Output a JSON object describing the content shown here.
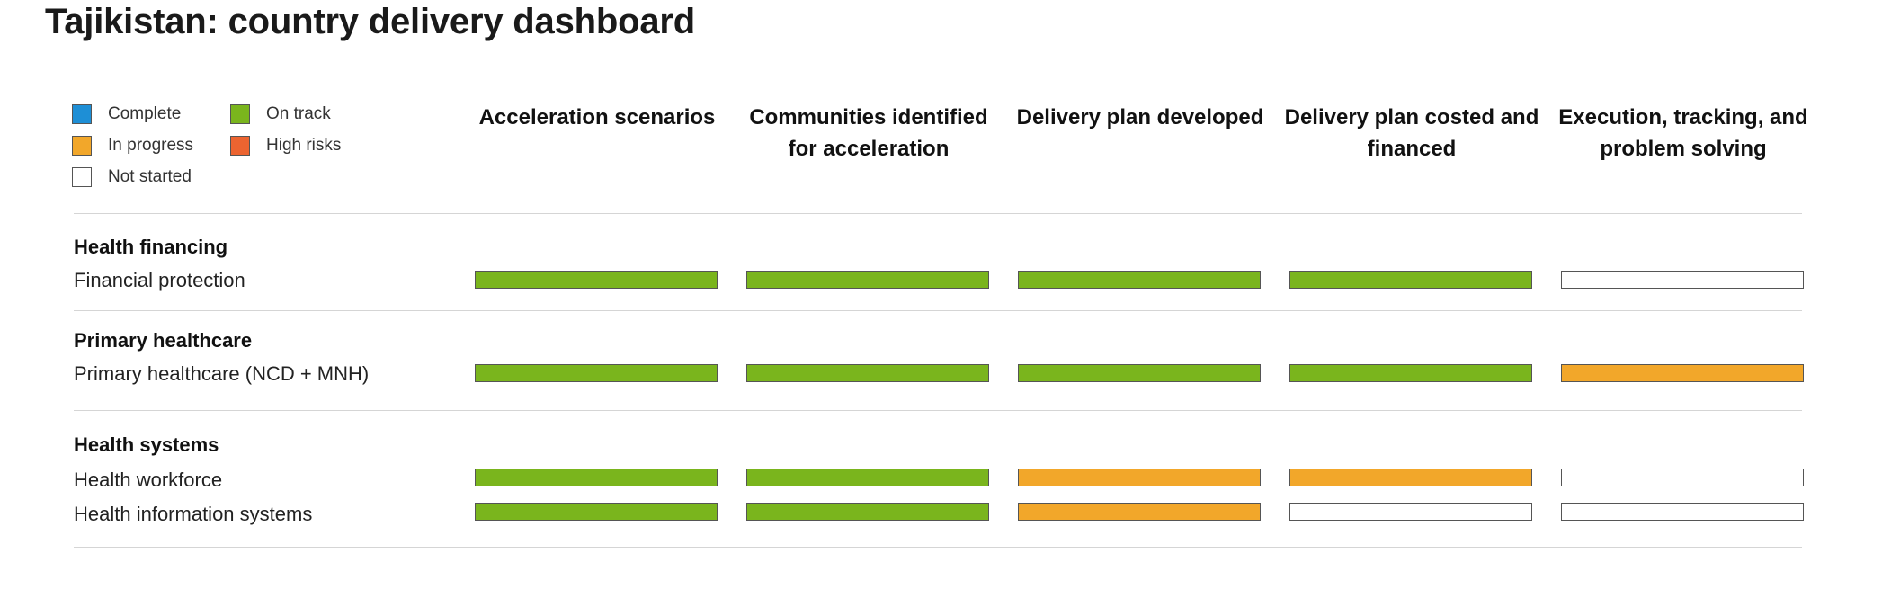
{
  "title": "Tajikistan: country delivery dashboard",
  "legend": [
    {
      "label": "Complete",
      "color": "#1e8fd6"
    },
    {
      "label": "On track",
      "color": "#7ab51d"
    },
    {
      "label": "In progress",
      "color": "#f2a72a"
    },
    {
      "label": "High risks",
      "color": "#ec6430"
    },
    {
      "label": "Not started",
      "color": "#ffffff"
    }
  ],
  "columns": [
    "Acceleration scenarios",
    "Communities identified for acceleration",
    "Delivery plan developed",
    "Delivery plan costed and financed",
    "Execution, tracking, and problem solving"
  ],
  "chart_data": {
    "type": "table",
    "title": "Tajikistan: country delivery dashboard",
    "status_colors": {
      "Complete": "#1e8fd6",
      "On track": "#7ab51d",
      "In progress": "#f2a72a",
      "High risks": "#ec6430",
      "Not started": "#ffffff"
    },
    "groups": [
      {
        "name": "Health financing",
        "rows": [
          {
            "label": "Financial protection",
            "statuses": [
              "On track",
              "On track",
              "On track",
              "On track",
              "Not started"
            ]
          }
        ]
      },
      {
        "name": "Primary healthcare",
        "rows": [
          {
            "label": "Primary healthcare (NCD + MNH)",
            "statuses": [
              "On track",
              "On track",
              "On track",
              "On track",
              "In progress"
            ]
          }
        ]
      },
      {
        "name": "Health systems",
        "rows": [
          {
            "label": "Health workforce",
            "statuses": [
              "On track",
              "On track",
              "In progress",
              "In progress",
              "Not started"
            ]
          },
          {
            "label": "Health information systems",
            "statuses": [
              "On track",
              "On track",
              "In progress",
              "Not started",
              "Not started"
            ]
          }
        ]
      }
    ]
  }
}
